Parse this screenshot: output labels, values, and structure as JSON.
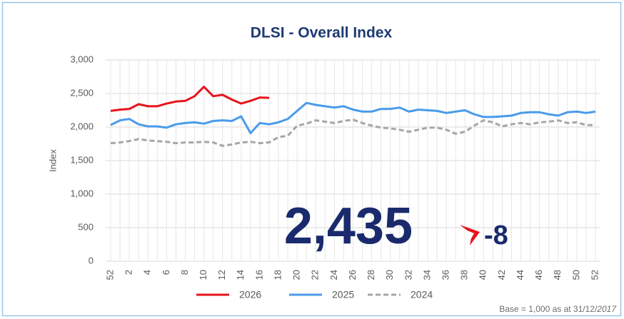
{
  "chart_data": {
    "type": "line",
    "title": "DLSI - Overall Index",
    "y_label": "Index",
    "kpi": {
      "value_label": "2,435",
      "change": "-8"
    },
    "footnote": {
      "text": "Base = 1,000 as at 31/12/",
      "emphasis": "2017"
    },
    "categories": [
      "52",
      null,
      "2",
      null,
      "4",
      null,
      "6",
      null,
      "8",
      null,
      "10",
      null,
      "12",
      null,
      "14",
      null,
      "16",
      null,
      "18",
      null,
      "20",
      null,
      "22",
      null,
      "24",
      null,
      "26",
      null,
      "28",
      null,
      "30",
      null,
      "32",
      null,
      "34",
      null,
      "36",
      null,
      "38",
      null,
      "40",
      null,
      "42",
      null,
      "44",
      null,
      "46",
      null,
      "48",
      null,
      "50",
      null,
      "52"
    ],
    "series": [
      {
        "name": "2026",
        "color": "#e8131b",
        "dash": false,
        "values": [
          2240,
          2260,
          2270,
          2340,
          2310,
          2310,
          2350,
          2380,
          2390,
          2460,
          2600,
          2460,
          2480,
          2410,
          2350,
          2390,
          2440,
          2435,
          null,
          null,
          null,
          null,
          null,
          null,
          null,
          null,
          null,
          null,
          null,
          null,
          null,
          null,
          null,
          null,
          null,
          null,
          null,
          null,
          null,
          null,
          null,
          null,
          null,
          null,
          null,
          null,
          null,
          null,
          null,
          null,
          null,
          null,
          null
        ]
      },
      {
        "name": "2025",
        "color": "#4a9bea",
        "dash": false,
        "values": [
          2030,
          2100,
          2120,
          2040,
          2010,
          2010,
          1990,
          2040,
          2060,
          2070,
          2050,
          2090,
          2100,
          2090,
          2160,
          1910,
          2060,
          2040,
          2070,
          2120,
          2240,
          2360,
          2330,
          2310,
          2290,
          2310,
          2260,
          2230,
          2230,
          2270,
          2270,
          2290,
          2230,
          2260,
          2250,
          2240,
          2210,
          2230,
          2250,
          2190,
          2150,
          2150,
          2160,
          2170,
          2210,
          2220,
          2220,
          2190,
          2170,
          2220,
          2230,
          2210,
          2230
        ]
      },
      {
        "name": "2024",
        "color": "#a6a6a6",
        "dash": true,
        "values": [
          1760,
          1770,
          1790,
          1820,
          1800,
          1790,
          1780,
          1760,
          1770,
          1770,
          1780,
          1770,
          1720,
          1740,
          1770,
          1780,
          1760,
          1770,
          1850,
          1870,
          2020,
          2050,
          2100,
          2080,
          2060,
          2090,
          2110,
          2060,
          2020,
          1990,
          1980,
          1960,
          1930,
          1960,
          1990,
          1990,
          1960,
          1900,
          1930,
          2020,
          2100,
          2070,
          2010,
          2040,
          2060,
          2040,
          2070,
          2080,
          2100,
          2060,
          2070,
          2030,
          2030
        ]
      }
    ],
    "ylim": [
      0,
      3000
    ],
    "yticks": [
      0,
      500,
      {
        "value": 1000,
        "label": "1,000"
      },
      {
        "value": 1500,
        "label": "1,500"
      },
      {
        "value": 2000,
        "label": "2,000"
      },
      {
        "value": 2500,
        "label": "2,500"
      },
      {
        "value": 3000,
        "label": "3,000"
      }
    ],
    "grid": true,
    "legend": "bottom"
  }
}
